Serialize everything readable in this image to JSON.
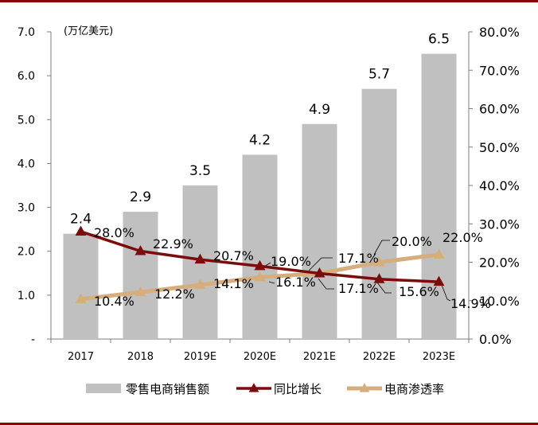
{
  "chart_data": {
    "type": "bar",
    "unit_label": "(万亿美元)",
    "categories": [
      "2017",
      "2018",
      "2019E",
      "2020E",
      "2021E",
      "2022E",
      "2023E"
    ],
    "left_axis": {
      "ticks": [
        "-",
        "1.0",
        "2.0",
        "3.0",
        "4.0",
        "5.0",
        "6.0",
        "7.0"
      ],
      "ylim": [
        0,
        7
      ]
    },
    "right_axis": {
      "ticks": [
        "0.0%",
        "10.0%",
        "20.0%",
        "30.0%",
        "40.0%",
        "50.0%",
        "60.0%",
        "70.0%",
        "80.0%"
      ],
      "ylim": [
        0,
        80
      ]
    },
    "grid": false,
    "legend_position": "bottom",
    "series": [
      {
        "name": "零售电商销售额",
        "type": "bar",
        "axis": "left",
        "color": "#c0c0c0",
        "values": [
          2.4,
          2.9,
          3.5,
          4.2,
          4.9,
          5.7,
          6.5
        ],
        "labels": [
          "2.4",
          "2.9",
          "3.5",
          "4.2",
          "4.9",
          "5.7",
          "6.5"
        ]
      },
      {
        "name": "同比增长",
        "type": "line",
        "axis": "right",
        "color": "#7b0c0c",
        "marker": "triangle",
        "values": [
          28.0,
          22.9,
          20.7,
          19.0,
          17.1,
          15.6,
          14.9
        ],
        "labels": [
          "28.0%",
          "22.9%",
          "20.7%",
          "19.0%",
          "17.1%",
          "15.6%",
          "14.9%"
        ]
      },
      {
        "name": "电商渗透率",
        "type": "line",
        "axis": "right",
        "color": "#d6ad7c",
        "marker": "triangle",
        "values": [
          10.4,
          12.2,
          14.1,
          16.1,
          17.1,
          20.0,
          22.0
        ],
        "labels": [
          "10.4%",
          "12.2%",
          "14.1%",
          "16.1%",
          "17.1%",
          "20.0%",
          "22.0%"
        ]
      }
    ]
  }
}
